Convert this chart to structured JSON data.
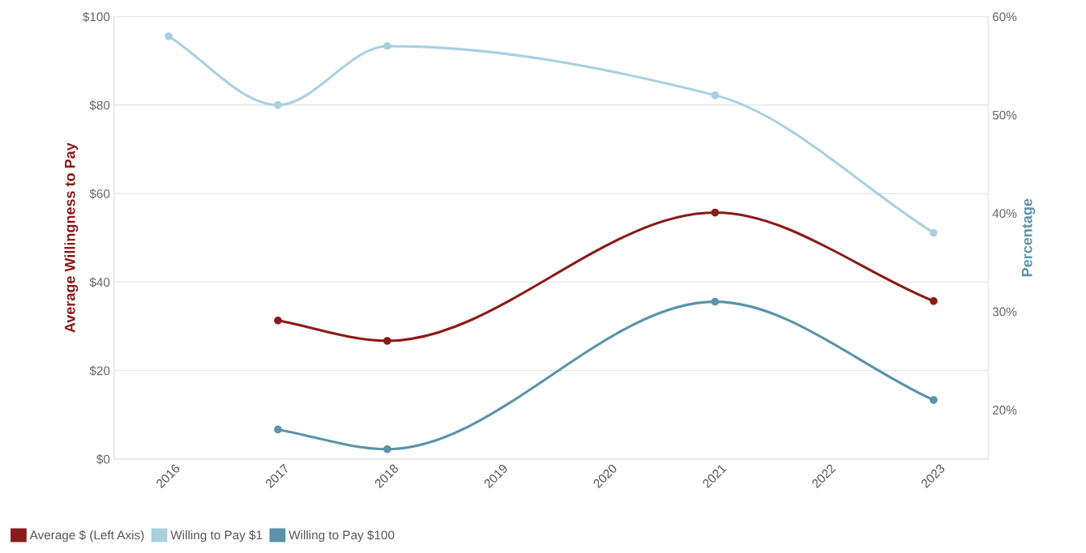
{
  "chart_data": {
    "type": "line",
    "xlabel": null,
    "ylabel": "Average Willingness to Pay",
    "y2label": "Percentage",
    "categories": [
      "2016",
      "2017",
      "2018",
      "2019",
      "2020",
      "2021",
      "2022",
      "2023"
    ],
    "series": [
      {
        "name": "Average $ (Left Axis)",
        "color": "#8b1a1a",
        "values": [
          null,
          31.3,
          26.7,
          null,
          null,
          55.7,
          null,
          35.7
        ]
      },
      {
        "name": "Willing to Pay $1",
        "color": "#a8d0e0",
        "axis": "y2",
        "values": [
          58,
          51,
          57,
          null,
          null,
          52,
          null,
          38
        ]
      },
      {
        "name": "Willing to Pay $100",
        "color": "#5b93a8",
        "axis": "y2",
        "values": [
          null,
          18,
          16,
          null,
          null,
          31,
          null,
          21
        ]
      }
    ],
    "ylim": [
      0,
      100
    ],
    "yticks": [
      {
        "value": 0,
        "label": "$0"
      },
      {
        "value": 20,
        "label": "$20"
      },
      {
        "value": 40,
        "label": "$40"
      },
      {
        "value": 60,
        "label": "$60"
      },
      {
        "value": 80,
        "label": "$80"
      },
      {
        "value": 100,
        "label": "$100"
      }
    ],
    "y2lim": [
      15,
      60
    ],
    "y2ticks": [
      {
        "value": 20,
        "label": "20%"
      },
      {
        "value": 30,
        "label": "30%"
      },
      {
        "value": 40,
        "label": "40%"
      },
      {
        "value": 50,
        "label": "50%"
      },
      {
        "value": 60,
        "label": "60%"
      }
    ],
    "grid": "y",
    "legend": "bottom left",
    "marker": "circle",
    "line_style": "solid"
  }
}
